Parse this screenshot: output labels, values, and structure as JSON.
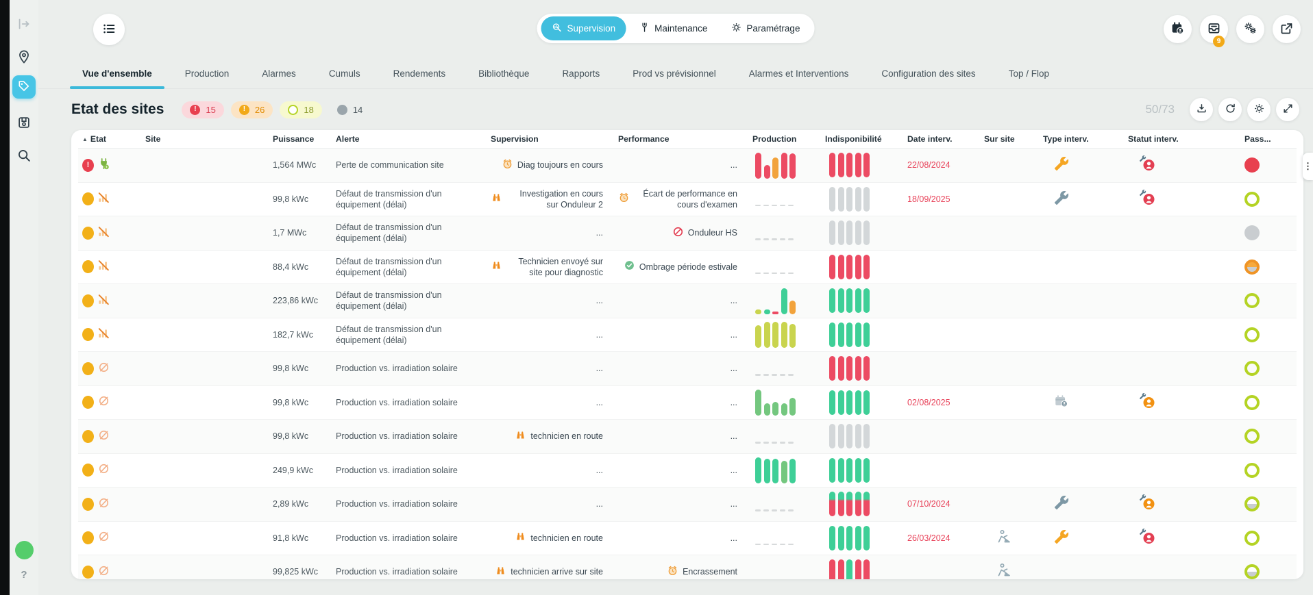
{
  "topbar": {
    "modes": [
      {
        "label": "Supervision",
        "icon": "search-chart",
        "active": true
      },
      {
        "label": "Maintenance",
        "icon": "fork-wrench",
        "active": false
      },
      {
        "label": "Paramétrage",
        "icon": "gear",
        "active": false
      }
    ],
    "actions": [
      {
        "name": "calendar-user",
        "badge": ""
      },
      {
        "name": "inbox",
        "badge": "9"
      },
      {
        "name": "gears",
        "badge": ""
      },
      {
        "name": "external-link",
        "badge": ""
      }
    ]
  },
  "tabs": [
    {
      "label": "Vue d'ensemble",
      "active": true
    },
    {
      "label": "Production",
      "active": false
    },
    {
      "label": "Alarmes",
      "active": false
    },
    {
      "label": "Cumuls",
      "active": false
    },
    {
      "label": "Rendements",
      "active": false
    },
    {
      "label": "Bibliothèque",
      "active": false
    },
    {
      "label": "Rapports",
      "active": false
    },
    {
      "label": "Prod vs prévisionnel",
      "active": false
    },
    {
      "label": "Alarmes et Interventions",
      "active": false
    },
    {
      "label": "Configuration des sites",
      "active": false
    },
    {
      "label": "Top / Flop",
      "active": false
    }
  ],
  "panel": {
    "title": "Etat des sites",
    "badges": [
      {
        "icon": "alert-red",
        "count": "15",
        "bg": "#fbd8dc",
        "fg": "#d93a4e",
        "dot": "#e8404f",
        "mark": "!"
      },
      {
        "icon": "alert-orange",
        "count": "26",
        "bg": "#fce4c4",
        "fg": "#e08a00",
        "dot": "#f2a918",
        "mark": "!"
      },
      {
        "icon": "ring-lime",
        "count": "18",
        "bg": "#f7f9cf",
        "fg": "#8a9a2a",
        "dot": "ring",
        "mark": ""
      },
      {
        "icon": "dot-gray",
        "count": "14",
        "bg": "transparent",
        "fg": "#4a565c",
        "dot": "#9aa5ab",
        "mark": ""
      }
    ],
    "counter": "50/73",
    "actions": [
      "download",
      "refresh",
      "settings-gear",
      "expand"
    ]
  },
  "table": {
    "columns": [
      "Etat",
      "Site",
      "Puissance",
      "Alerte",
      "Supervision",
      "Performance",
      "Production",
      "Indisponibilité",
      "Date interv.",
      "Sur site",
      "Type interv.",
      "Statut interv.",
      "Pass..."
    ],
    "rows": [
      {
        "etat": [
          "red-alert",
          "plug"
        ],
        "site": "",
        "puissance": "1,564 MWc",
        "alerte": "Perte de communication site",
        "supervision": {
          "icon": "alarm-clock",
          "text": "Diag toujours en cours"
        },
        "performance": {
          "icon": "",
          "text": "..."
        },
        "production": {
          "kind": "bars",
          "bars": [
            [
              100,
              "red"
            ],
            [
              52,
              "red"
            ],
            [
              80,
              "orange"
            ],
            [
              100,
              "red"
            ],
            [
              95,
              "red"
            ]
          ]
        },
        "indispo": [
          "red",
          "red",
          "red",
          "red",
          "red"
        ],
        "date": "22/08/2024",
        "sur_site": "",
        "type_interv": "wrench-orange",
        "statut_interv": "tech-red",
        "pass": "red-full"
      },
      {
        "etat": [
          "orange",
          "no-signal"
        ],
        "site": "",
        "puissance": "99,8 kWc",
        "alerte": "Défaut de transmission d'un équipement (délai)",
        "supervision": {
          "icon": "binoculars",
          "text": "Investigation en cours sur Onduleur 2"
        },
        "performance": {
          "icon": "alarm-clock",
          "text": "Écart de performance en cours d'examen"
        },
        "production": {
          "kind": "dashes"
        },
        "indispo": [
          "gray",
          "gray",
          "gray",
          "gray",
          "gray"
        ],
        "date": "18/09/2025",
        "sur_site": "",
        "type_interv": "wrench-gray",
        "statut_interv": "tech-red",
        "pass": "green-ring"
      },
      {
        "etat": [
          "orange",
          "no-signal"
        ],
        "site": "",
        "puissance": "1,7 MWc",
        "alerte": "Défaut de transmission d'un équipement (délai)",
        "supervision": {
          "icon": "",
          "text": "..."
        },
        "performance": {
          "icon": "ban",
          "text": "Onduleur HS"
        },
        "production": {
          "kind": "dashes"
        },
        "indispo": [
          "gray",
          "gray",
          "gray",
          "gray",
          "gray"
        ],
        "date": "",
        "sur_site": "",
        "type_interv": "",
        "statut_interv": "",
        "pass": "gray-full"
      },
      {
        "etat": [
          "orange",
          "no-signal"
        ],
        "site": "",
        "puissance": "88,4 kWc",
        "alerte": "Défaut de transmission d'un équipement (délai)",
        "supervision": {
          "icon": "binoculars",
          "text": "Technicien envoyé sur site pour diagnostic"
        },
        "performance": {
          "icon": "check",
          "text": "Ombrage période estivale"
        },
        "production": {
          "kind": "dashes"
        },
        "indispo": [
          "red",
          "red",
          "red",
          "red",
          "red"
        ],
        "date": "",
        "sur_site": "",
        "type_interv": "",
        "statut_interv": "",
        "pass": "orange-half"
      },
      {
        "etat": [
          "orange",
          "no-signal"
        ],
        "site": "",
        "puissance": "223,86 kWc",
        "alerte": "Défaut de transmission d'un équipement (délai)",
        "supervision": {
          "icon": "",
          "text": "..."
        },
        "performance": {
          "icon": "",
          "text": "..."
        },
        "production": {
          "kind": "bars",
          "bars": [
            [
              16,
              "lime"
            ],
            [
              16,
              "green"
            ],
            [
              8,
              "red"
            ],
            [
              100,
              "green"
            ],
            [
              52,
              "orange"
            ]
          ]
        },
        "indispo": [
          "green",
          "green",
          "green",
          "green",
          "green"
        ],
        "date": "",
        "sur_site": "",
        "type_interv": "",
        "statut_interv": "",
        "pass": "green-ring"
      },
      {
        "etat": [
          "orange",
          "no-signal"
        ],
        "site": "",
        "puissance": "182,7 kWc",
        "alerte": "Défaut de transmission d'un équipement (délai)",
        "supervision": {
          "icon": "",
          "text": "..."
        },
        "performance": {
          "icon": "",
          "text": "..."
        },
        "production": {
          "kind": "bars",
          "bars": [
            [
              88,
              "lime"
            ],
            [
              100,
              "lime"
            ],
            [
              100,
              "lime"
            ],
            [
              100,
              "lime"
            ],
            [
              92,
              "lime"
            ]
          ]
        },
        "indispo": [
          "green",
          "green",
          "green",
          "green",
          "green"
        ],
        "date": "",
        "sur_site": "",
        "type_interv": "",
        "statut_interv": "",
        "pass": "green-ring"
      },
      {
        "etat": [
          "orange",
          "null-sign"
        ],
        "site": "",
        "puissance": "99,8 kWc",
        "alerte": "Production vs. irradiation solaire",
        "supervision": {
          "icon": "",
          "text": "..."
        },
        "performance": {
          "icon": "",
          "text": "..."
        },
        "production": {
          "kind": "dashes"
        },
        "indispo": [
          "red",
          "red",
          "red",
          "red",
          "red"
        ],
        "date": "",
        "sur_site": "",
        "type_interv": "",
        "statut_interv": "",
        "pass": "green-ring"
      },
      {
        "etat": [
          "orange",
          "null-sign"
        ],
        "site": "",
        "puissance": "99,8 kWc",
        "alerte": "Production vs. irradiation solaire",
        "supervision": {
          "icon": "",
          "text": "..."
        },
        "performance": {
          "icon": "",
          "text": "..."
        },
        "production": {
          "kind": "bars",
          "bars": [
            [
              100,
              "midgreen"
            ],
            [
              48,
              "midgreen"
            ],
            [
              52,
              "midgreen"
            ],
            [
              48,
              "midgreen"
            ],
            [
              68,
              "midgreen"
            ]
          ]
        },
        "indispo": [
          "green",
          "green",
          "green",
          "green",
          "green"
        ],
        "date": "02/08/2025",
        "sur_site": "",
        "type_interv": "calendar-user",
        "statut_interv": "tech-orange",
        "pass": "green-ring"
      },
      {
        "etat": [
          "orange",
          "null-sign"
        ],
        "site": "",
        "puissance": "99,8 kWc",
        "alerte": "Production vs. irradiation solaire",
        "supervision": {
          "icon": "binoculars",
          "text": "technicien en route"
        },
        "performance": {
          "icon": "",
          "text": "..."
        },
        "production": {
          "kind": "dashes"
        },
        "indispo": [
          "gray",
          "gray",
          "gray",
          "gray",
          "gray"
        ],
        "date": "",
        "sur_site": "",
        "type_interv": "",
        "statut_interv": "",
        "pass": "green-ring"
      },
      {
        "etat": [
          "orange",
          "null-sign"
        ],
        "site": "",
        "puissance": "249,9 kWc",
        "alerte": "Production vs. irradiation solaire",
        "supervision": {
          "icon": "",
          "text": "..."
        },
        "performance": {
          "icon": "",
          "text": "..."
        },
        "production": {
          "kind": "bars",
          "bars": [
            [
              100,
              "green"
            ],
            [
              95,
              "green"
            ],
            [
              95,
              "green"
            ],
            [
              88,
              "midgreen"
            ],
            [
              95,
              "green"
            ]
          ]
        },
        "indispo": [
          "green",
          "green",
          "green",
          "green",
          "green"
        ],
        "date": "",
        "sur_site": "",
        "type_interv": "",
        "statut_interv": "",
        "pass": "green-ring"
      },
      {
        "etat": [
          "orange",
          "null-sign"
        ],
        "site": "",
        "puissance": "2,89 kWc",
        "alerte": "Production vs. irradiation solaire",
        "supervision": {
          "icon": "",
          "text": "..."
        },
        "performance": {
          "icon": "",
          "text": "..."
        },
        "production": {
          "kind": "dashes"
        },
        "indispo": [
          "greenred",
          "greenred",
          "greenred",
          "greenred",
          "greenred"
        ],
        "date": "07/10/2024",
        "sur_site": "",
        "type_interv": "wrench-gray",
        "statut_interv": "tech-orange",
        "pass": "green-half"
      },
      {
        "etat": [
          "orange",
          "null-sign"
        ],
        "site": "",
        "puissance": "91,8 kWc",
        "alerte": "Production vs. irradiation solaire",
        "supervision": {
          "icon": "binoculars",
          "text": "technicien en route"
        },
        "performance": {
          "icon": "",
          "text": "..."
        },
        "production": {
          "kind": "dashes"
        },
        "indispo": [
          "green",
          "green",
          "green",
          "green",
          "green"
        ],
        "date": "26/03/2024",
        "sur_site": "worker",
        "type_interv": "wrench-orange",
        "statut_interv": "tech-red",
        "pass": "green-ring"
      },
      {
        "etat": [
          "orange",
          "null-sign"
        ],
        "site": "",
        "puissance": "99,825 kWc",
        "alerte": "Production vs. irradiation solaire",
        "supervision": {
          "icon": "binoculars",
          "text": "technicien arrive sur site"
        },
        "performance": {
          "icon": "alarm-clock",
          "text": "Encrassement"
        },
        "production": {
          "kind": "none"
        },
        "indispo": [
          "red",
          "red",
          "green",
          "red",
          "red"
        ],
        "date": "",
        "sur_site": "worker",
        "type_interv": "",
        "statut_interv": "",
        "pass": "green-half"
      }
    ]
  },
  "sidebar": {
    "help": "?",
    "status_dot_color": "#55cd6b"
  },
  "colors": {
    "accent": "#41bede",
    "bar_red": "#ec4b63",
    "bar_orange": "#f2a33c",
    "bar_green": "#3ecf97",
    "bar_lime": "#c9d44e",
    "bar_midgreen": "#74c77f",
    "bar_gray": "#d3d7d9",
    "date_red": "#e8435a",
    "badge_orange": "#f2a918",
    "ring_lime": "#b4d324"
  }
}
